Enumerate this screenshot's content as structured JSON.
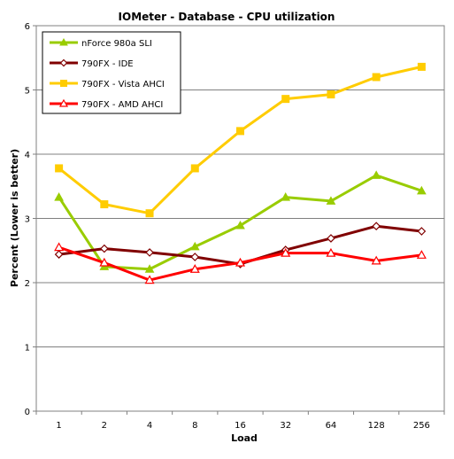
{
  "chart_data": {
    "type": "line",
    "title": "IOMeter - Database - CPU utilization",
    "xlabel": "Load",
    "ylabel": "Percent (Lower is better)",
    "categories": [
      "1",
      "2",
      "4",
      "8",
      "16",
      "32",
      "64",
      "128",
      "256"
    ],
    "yticks": [
      "0",
      "1",
      "2",
      "3",
      "4",
      "5",
      "6"
    ],
    "ylim": [
      0,
      6
    ],
    "grid": "horizontal",
    "legend_position": "top-left",
    "series": [
      {
        "name": "nForce 980a SLI",
        "color": "#99cc00",
        "marker": "triangle-filled",
        "values": [
          3.33,
          2.25,
          2.21,
          2.56,
          2.89,
          3.33,
          3.27,
          3.67,
          3.43
        ]
      },
      {
        "name": "790FX - IDE",
        "color": "#800000",
        "marker": "diamond-open",
        "values": [
          2.44,
          2.53,
          2.47,
          2.4,
          2.29,
          2.51,
          2.69,
          2.88,
          2.8
        ]
      },
      {
        "name": "790FX - Vista AHCI",
        "color": "#ffcc00",
        "marker": "square-filled",
        "values": [
          3.78,
          3.22,
          3.08,
          3.78,
          4.36,
          4.86,
          4.93,
          5.2,
          5.36
        ]
      },
      {
        "name": "790FX - AMD AHCI",
        "color": "#ff0000",
        "marker": "triangle-open",
        "values": [
          2.55,
          2.31,
          2.04,
          2.21,
          2.31,
          2.46,
          2.46,
          2.34,
          2.43
        ]
      }
    ]
  }
}
